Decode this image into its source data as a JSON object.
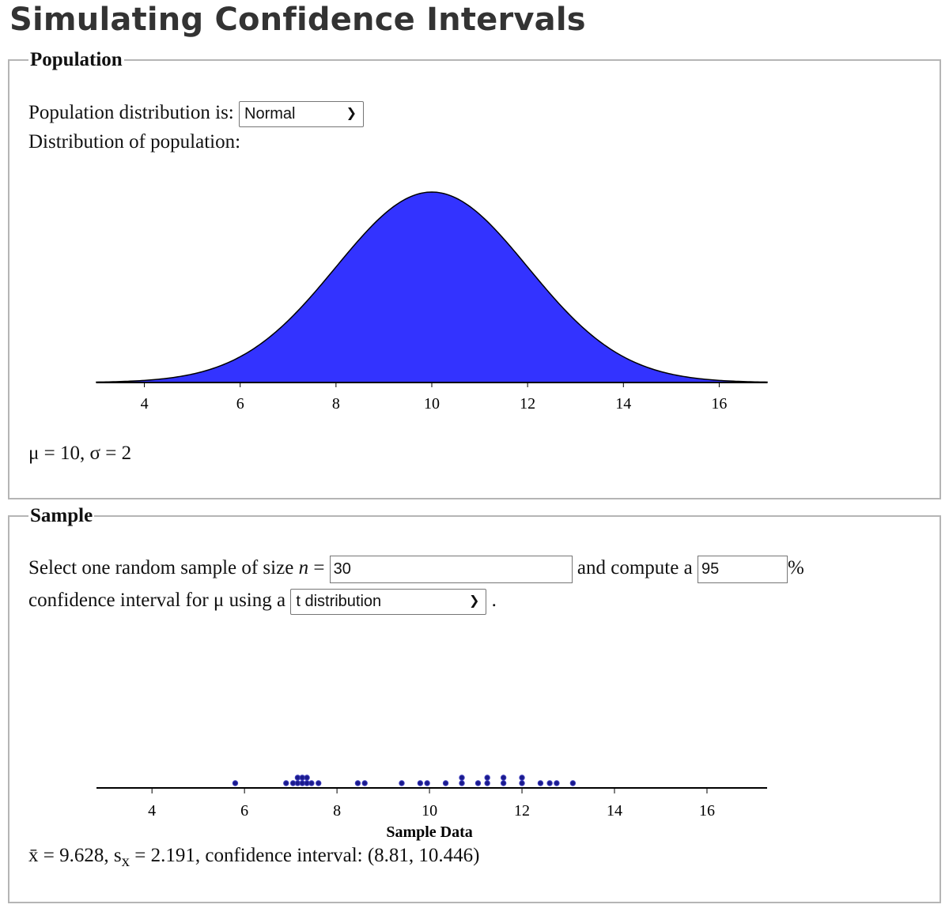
{
  "title": "Simulating Confidence Intervals",
  "population": {
    "legend": "Population",
    "dist_label": "Population distribution is:",
    "dist_selected": "Normal",
    "chart_label": "Distribution of population:",
    "params": "μ = 10, σ = 2"
  },
  "sample": {
    "legend": "Sample",
    "text1": "Select one random sample of size",
    "n_symbol": "n",
    "eq": "=",
    "n_value": "30",
    "text2": "and compute a",
    "conf_value": "95",
    "pct": "%",
    "text3": "confidence interval for μ using a",
    "method_selected": "t distribution",
    "period": ".",
    "stats": {
      "xbar_label": "x̄ = ",
      "xbar": "9.628",
      "sep": ", ",
      "s_label": "s",
      "s_sub": "x",
      "s_eq": " = ",
      "s": "2.191",
      "ci_label": ", confidence interval: ",
      "ci": "(8.81, 10.446)"
    }
  },
  "colors": {
    "fill": "#3333ff",
    "dot": "#1a1a8c"
  },
  "chart_data": [
    {
      "type": "area",
      "distribution": "normal",
      "mean": 10,
      "sd": 2,
      "xlim": [
        3,
        17
      ],
      "xticks": [
        4,
        6,
        8,
        10,
        12,
        14,
        16
      ],
      "xlabel": "",
      "color": "#3333ff"
    },
    {
      "type": "scatter",
      "xlabel": "Sample Data",
      "xlim": [
        2.8,
        17.3
      ],
      "xticks": [
        4,
        6,
        8,
        10,
        12,
        14,
        16
      ],
      "values": [
        5.8,
        6.9,
        7.05,
        7.15,
        7.15,
        7.25,
        7.25,
        7.35,
        7.35,
        7.45,
        7.6,
        8.45,
        8.6,
        9.4,
        9.8,
        9.95,
        10.35,
        10.7,
        10.7,
        11.05,
        11.25,
        11.25,
        11.6,
        11.6,
        12.0,
        12.0,
        12.4,
        12.6,
        12.75,
        13.1
      ]
    }
  ]
}
